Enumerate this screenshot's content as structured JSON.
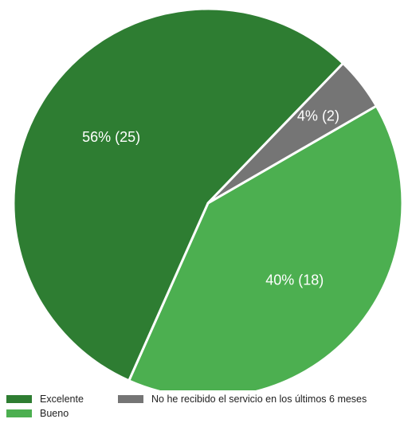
{
  "chart_data": {
    "type": "pie",
    "categories": [
      "Excelente",
      "Bueno",
      "No he recibido el servicio en los últimos 6 meses"
    ],
    "values": [
      25,
      18,
      2
    ],
    "percent_labels": [
      "56% (25)",
      "40% (18)",
      "4% (2)"
    ],
    "colors": [
      "#2e7d32",
      "#4caf50",
      "#757575"
    ],
    "legend_position": "bottom-left"
  }
}
